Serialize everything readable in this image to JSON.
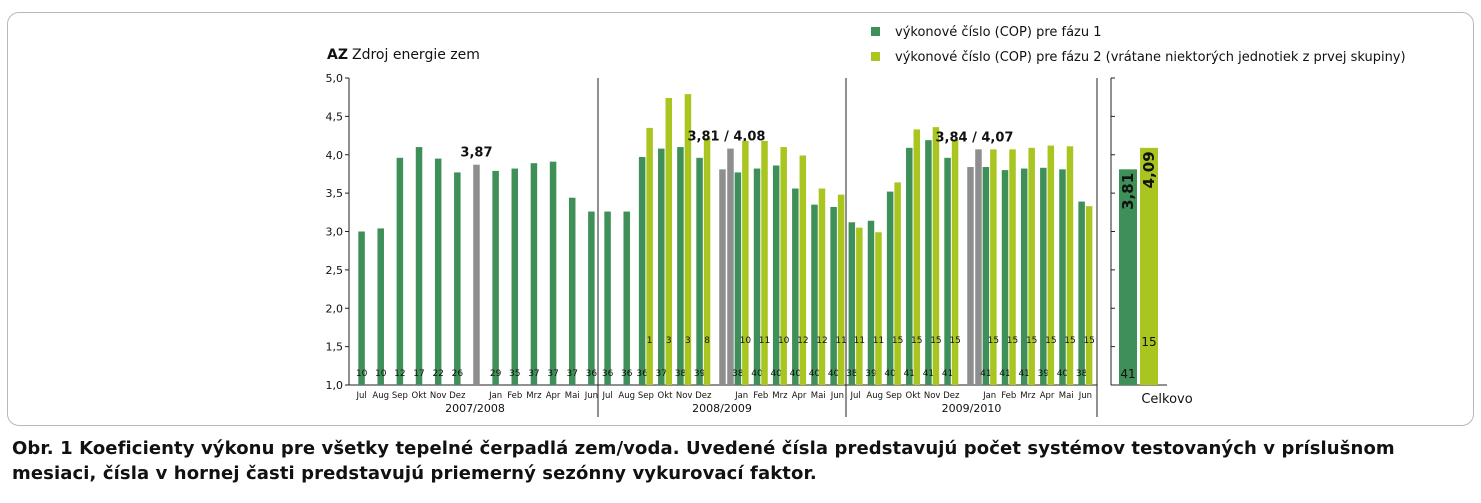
{
  "colors": {
    "phase1": "#3e8f58",
    "phase2": "#a9c51f",
    "average": "#8e8e8e",
    "axis": "#222222"
  },
  "caption": "Obr. 1 Koeficienty výkonu pre všetky tepelné čerpadlá zem/voda. Uvedené čísla predstavujú počet systémov testovaných v príslušnom mesiaci, čísla v hornej časti predstavujú priemerný sezónny vykurovací faktor.",
  "chart_data": {
    "type": "bar",
    "title_prefix": "AZ",
    "title": "Zdroj energie zem",
    "ylim": [
      1.0,
      5.0
    ],
    "yticks": [
      "1,0",
      "1,5",
      "2,0",
      "2,5",
      "3,0",
      "3,5",
      "4,0",
      "4,5",
      "5,0"
    ],
    "legend": [
      {
        "key": "phase1",
        "label": "výkonové číslo (COP) pre fázu 1"
      },
      {
        "key": "phase2",
        "label": "výkonové číslo (COP) pre fázu 2 (vrátane niektorých jednotiek z prvej skupiny)"
      }
    ],
    "seasons": [
      {
        "label": "2007/2008",
        "months": [
          {
            "m": "Jul",
            "p1": 3.0,
            "n1": "10"
          },
          {
            "m": "Aug",
            "p1": 3.04,
            "n1": "10"
          },
          {
            "m": "Sep",
            "p1": 3.96,
            "n1": "12"
          },
          {
            "m": "Okt",
            "p1": 4.1,
            "n1": "17"
          },
          {
            "m": "Nov",
            "p1": 3.95,
            "n1": "22"
          },
          {
            "m": "Dez",
            "p1": 3.77,
            "n1": "26"
          },
          {
            "avg": true,
            "v": 3.87,
            "label": "3,87"
          },
          {
            "m": "Jan",
            "p1": 3.79,
            "n1": "29"
          },
          {
            "m": "Feb",
            "p1": 3.82,
            "n1": "35"
          },
          {
            "m": "Mrz",
            "p1": 3.89,
            "n1": "37"
          },
          {
            "m": "Apr",
            "p1": 3.91,
            "n1": "37"
          },
          {
            "m": "Mai",
            "p1": 3.44,
            "n1": "37"
          },
          {
            "m": "Jun",
            "p1": 3.26,
            "n1": "36"
          }
        ]
      },
      {
        "label": "2008/2009",
        "months": [
          {
            "m": "Jul",
            "p1": 3.26,
            "n1": "36"
          },
          {
            "m": "Aug",
            "p1": 3.26,
            "n1": "36"
          },
          {
            "m": "Sep",
            "p1": 3.97,
            "n1": "36",
            "p2": 4.35,
            "n2": "1"
          },
          {
            "m": "Okt",
            "p1": 4.08,
            "n1": "37",
            "p2": 4.74,
            "n2": "3"
          },
          {
            "m": "Nov",
            "p1": 4.1,
            "n1": "38",
            "p2": 4.79,
            "n2": "3"
          },
          {
            "m": "Dez",
            "p1": 3.96,
            "n1": "39",
            "p2": 4.22,
            "n2": "8"
          },
          {
            "avg": true,
            "v": 3.81,
            "v2": 4.08,
            "label": "3,81 / 4,08"
          },
          {
            "m": "Jan",
            "p1": 3.77,
            "n1": "38",
            "p2": 4.18,
            "n2": "10"
          },
          {
            "m": "Feb",
            "p1": 3.82,
            "n1": "40",
            "p2": 4.18,
            "n2": "11"
          },
          {
            "m": "Mrz",
            "p1": 3.86,
            "n1": "40",
            "p2": 4.1,
            "n2": "10"
          },
          {
            "m": "Apr",
            "p1": 3.56,
            "n1": "40",
            "p2": 3.99,
            "n2": "12"
          },
          {
            "m": "Mai",
            "p1": 3.35,
            "n1": "40",
            "p2": 3.56,
            "n2": "12"
          },
          {
            "m": "Jun",
            "p1": 3.32,
            "n1": "40",
            "p2": 3.48,
            "n2": "11"
          }
        ]
      },
      {
        "label": "2009/2010",
        "months": [
          {
            "m": "Jul",
            "p1": 3.12,
            "n1": "38",
            "p2": 3.05,
            "n2": "11"
          },
          {
            "m": "Aug",
            "p1": 3.14,
            "n1": "39",
            "p2": 2.99,
            "n2": "11"
          },
          {
            "m": "Sep",
            "p1": 3.52,
            "n1": "40",
            "p2": 3.64,
            "n2": "15"
          },
          {
            "m": "Okt",
            "p1": 4.09,
            "n1": "41",
            "p2": 4.33,
            "n2": "15"
          },
          {
            "m": "Nov",
            "p1": 4.19,
            "n1": "41",
            "p2": 4.36,
            "n2": "15"
          },
          {
            "m": "Dez",
            "p1": 3.96,
            "n1": "41",
            "p2": 4.2,
            "n2": "15"
          },
          {
            "avg": true,
            "v": 3.84,
            "v2": 4.07,
            "label": "3,84 / 4,07"
          },
          {
            "m": "Jan",
            "p1": 3.84,
            "n1": "41",
            "p2": 4.07,
            "n2": "15"
          },
          {
            "m": "Feb",
            "p1": 3.8,
            "n1": "41",
            "p2": 4.07,
            "n2": "15"
          },
          {
            "m": "Mrz",
            "p1": 3.82,
            "n1": "41",
            "p2": 4.09,
            "n2": "15"
          },
          {
            "m": "Apr",
            "p1": 3.83,
            "n1": "39",
            "p2": 4.12,
            "n2": "15"
          },
          {
            "m": "Mai",
            "p1": 3.81,
            "n1": "40",
            "p2": 4.11,
            "n2": "15"
          },
          {
            "m": "Jun",
            "p1": 3.39,
            "n1": "38",
            "p2": 3.33,
            "n2": "15"
          }
        ]
      }
    ],
    "overall": {
      "label": "Celkovo",
      "p1": 3.81,
      "p1_label": "3,81",
      "n1": "41",
      "p2": 4.09,
      "p2_label": "4,09",
      "n2": "15"
    }
  }
}
